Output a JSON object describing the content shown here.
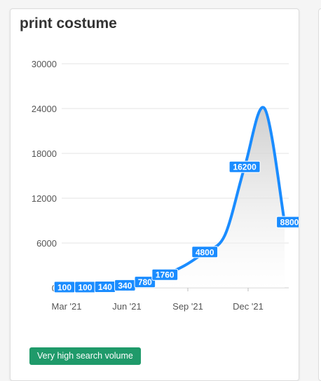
{
  "title": "print costume",
  "badge_label": "Very high search volume",
  "colors": {
    "line": "#1a8cff",
    "badge": "#1f9a6a",
    "label_bg": "#1a8cff"
  },
  "chart_data": {
    "type": "area",
    "title": "print costume",
    "xlabel": "",
    "ylabel": "",
    "ylim": [
      0,
      30000
    ],
    "y_ticks": [
      0,
      6000,
      12000,
      18000,
      24000,
      30000
    ],
    "x_ticks": [
      "Mar '21",
      "Jun '21",
      "Sep '21",
      "Dec '21"
    ],
    "grid": true,
    "series": [
      {
        "values": [
          100,
          100,
          140,
          340,
          780,
          1760,
          3000,
          4800,
          7000,
          16200,
          24000,
          8800
        ],
        "labels": [
          "100",
          "100",
          "140",
          "340",
          "780",
          "1760",
          "",
          "4800",
          "",
          "16200",
          "",
          "8800"
        ]
      }
    ]
  }
}
